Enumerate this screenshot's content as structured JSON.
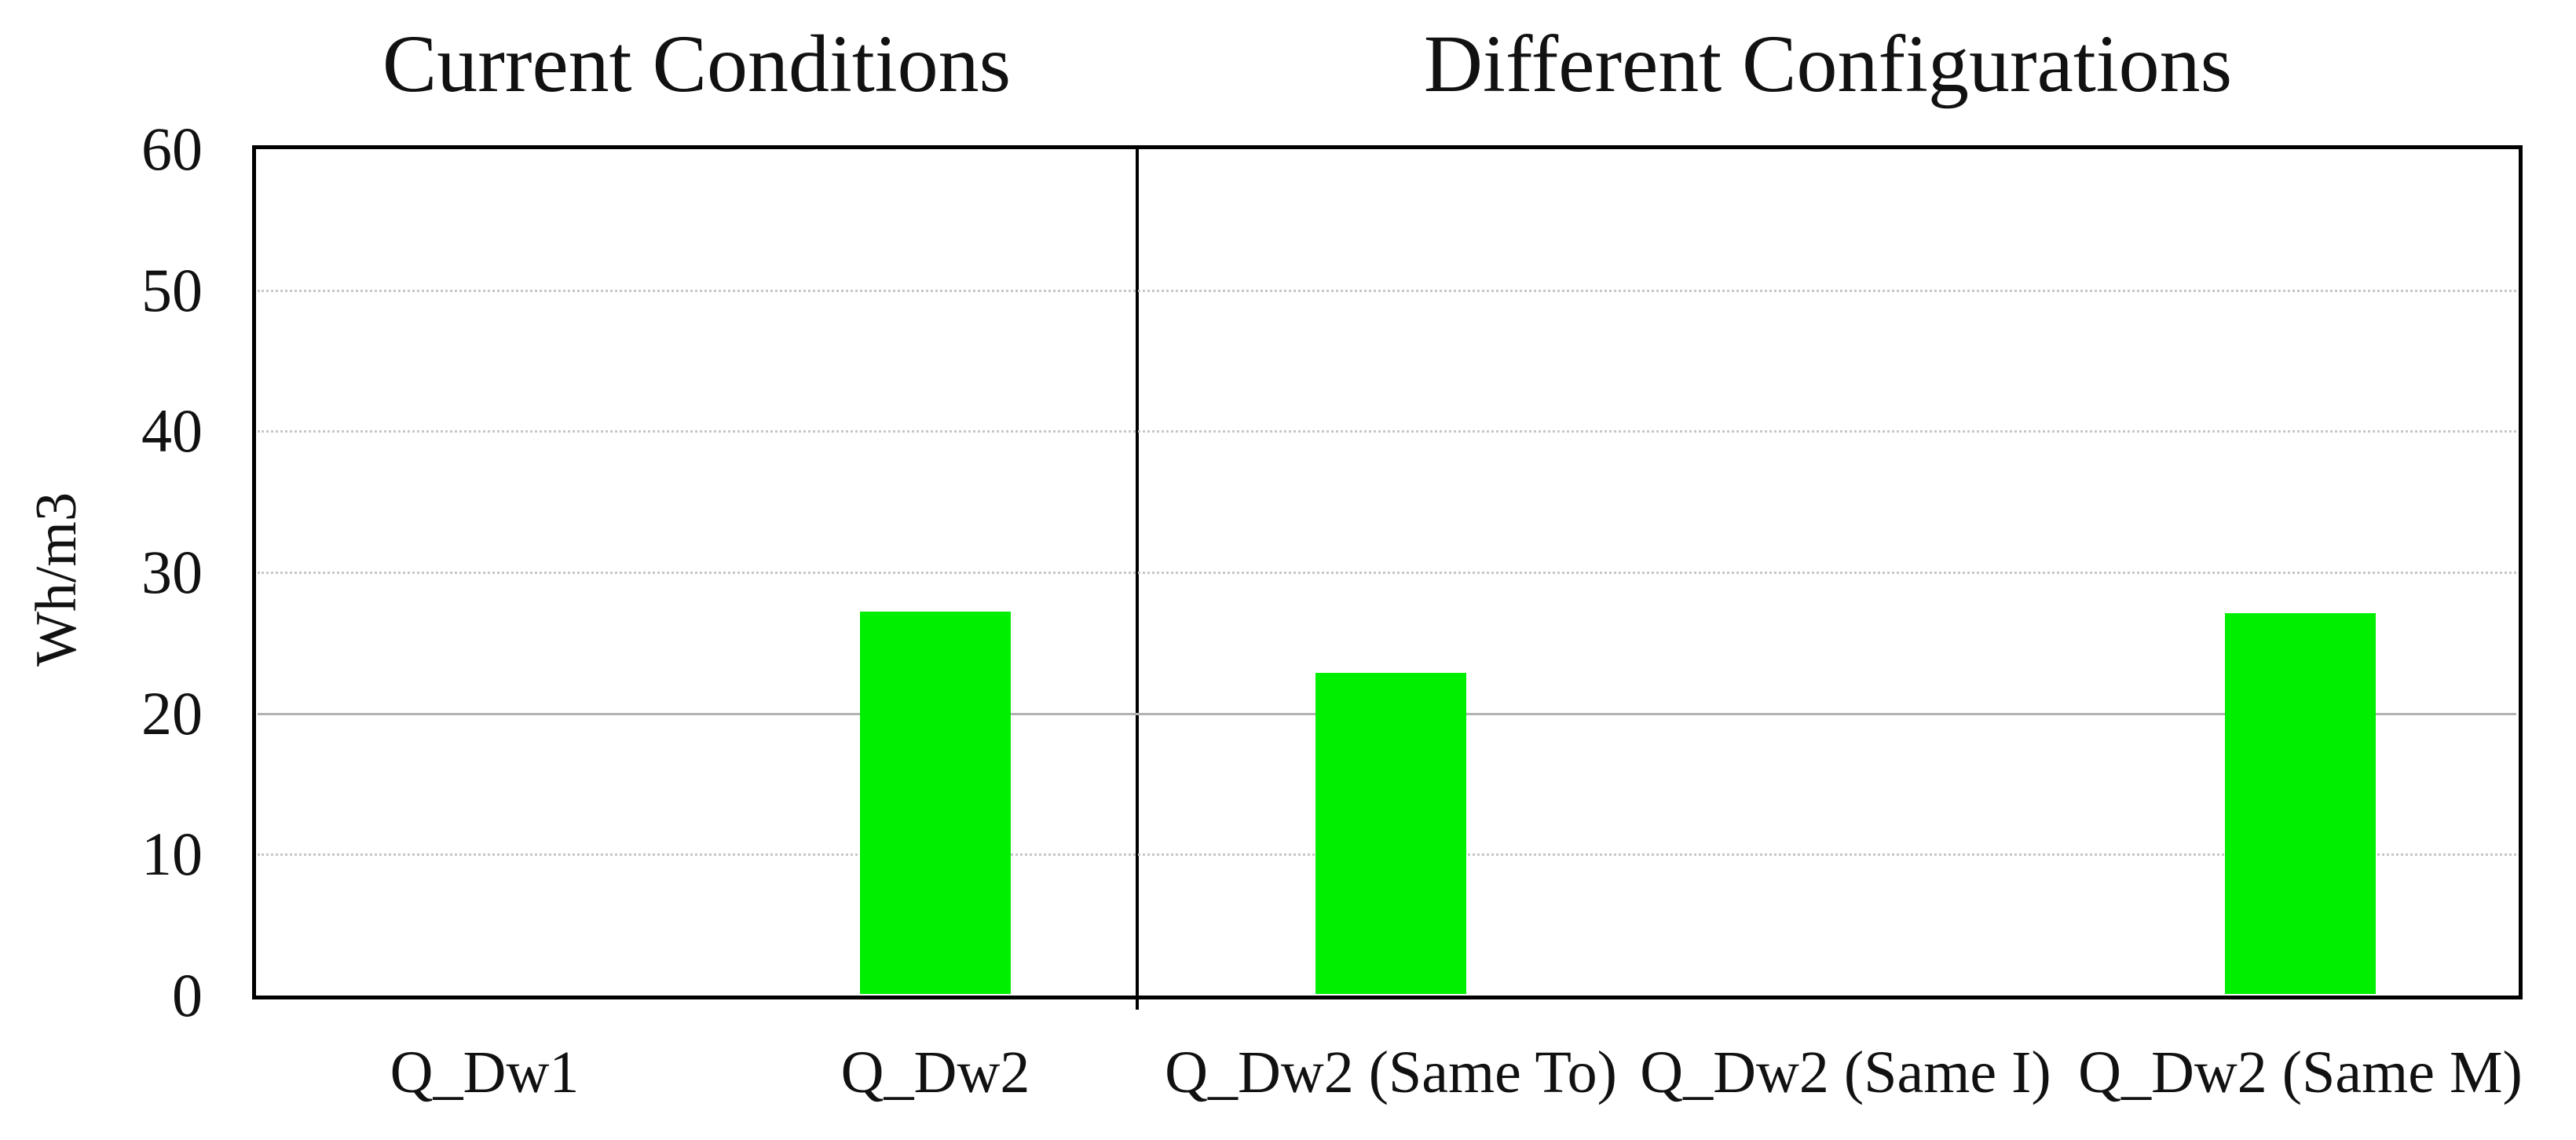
{
  "chart_data": {
    "type": "bar",
    "panel_titles": [
      "Current Conditions",
      "Different Configurations"
    ],
    "panels": [
      {
        "title": "Current Conditions",
        "categories": [
          "Q_Dw1",
          "Q_Dw2"
        ]
      },
      {
        "title": "Different Configurations",
        "categories": [
          "Q_Dw2 (Same To)",
          "Q_Dw2 (Same I)",
          "Q_Dw2 (Same M)"
        ]
      }
    ],
    "categories": [
      "Q_Dw1",
      "Q_Dw2",
      "Q_Dw2 (Same To)",
      "Q_Dw2 (Same I)",
      "Q_Dw2 (Same M)"
    ],
    "values": [
      0,
      27.2,
      22.9,
      0,
      27.1
    ],
    "ylabel": "Wh/m3",
    "xlabel": "",
    "ylim": [
      0,
      60
    ],
    "yticks": [
      0,
      10,
      20,
      30,
      40,
      50,
      60
    ],
    "bar_color": "#00ee00",
    "axis_color": "#000000",
    "text_color": "#111111",
    "legend": "none",
    "grid": {
      "orientation": "horizontal",
      "color": "#c6c6c6",
      "lines": [
        {
          "value": 10,
          "style": "dotted"
        },
        {
          "value": 20,
          "style": "solid"
        },
        {
          "value": 30,
          "style": "dotted"
        },
        {
          "value": 40,
          "style": "dotted"
        },
        {
          "value": 50,
          "style": "dotted"
        }
      ]
    }
  }
}
